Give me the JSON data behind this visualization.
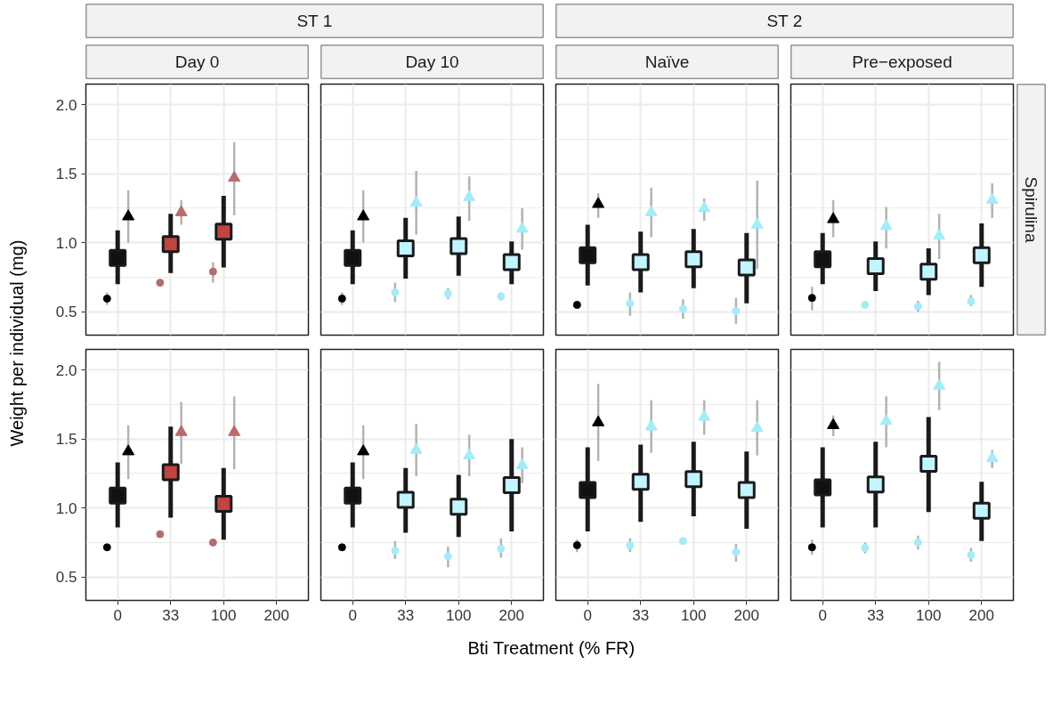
{
  "chart_data": [
    {
      "type": "scatter",
      "title": "Day 0",
      "ylabel": "Weight per individual (mg)",
      "annotations": [
        "ST 1"
      ],
      "categories": [
        "0",
        "33",
        "100",
        "200"
      ],
      "ylim": [
        0.33,
        2.15
      ],
      "yticks": [
        {
          "value": 0.5,
          "label": "0.5"
        },
        {
          "value": 1.0,
          "label": "1.0"
        },
        {
          "value": 1.5,
          "label": "1.5"
        },
        {
          "value": 2.0,
          "label": "2.0"
        }
      ],
      "grid": true,
      "tick_labels": "y",
      "series": [
        {
          "marker": "circle",
          "colors": [
            "#000000",
            "#b86b6b",
            "#b86b6b",
            "#b86b6b"
          ],
          "values": [
            0.595,
            0.71,
            0.79,
            null
          ],
          "errors": [
            [
              0.55,
              0.64
            ],
            null,
            [
              0.71,
              0.86
            ],
            null
          ]
        },
        {
          "marker": "square",
          "colors": [
            "#111111",
            "#c0443f",
            "#c0443f",
            "#c0443f"
          ],
          "values": [
            0.89,
            0.99,
            1.08,
            null
          ],
          "errors": [
            [
              0.7,
              1.09
            ],
            [
              0.78,
              1.21
            ],
            [
              0.82,
              1.34
            ],
            null
          ]
        },
        {
          "marker": "triangle",
          "colors": [
            "#000000",
            "#b86b6b",
            "#b86b6b",
            "#b86b6b"
          ],
          "values": [
            1.19,
            1.22,
            1.47,
            null
          ],
          "errors": [
            [
              1.0,
              1.38
            ],
            [
              1.13,
              1.31
            ],
            [
              1.2,
              1.73
            ],
            null
          ]
        }
      ]
    },
    {
      "type": "scatter",
      "title": "Day 10",
      "categories": [
        "0",
        "33",
        "100",
        "200"
      ],
      "ylim": [
        0.33,
        2.15
      ],
      "yticks": [
        0.5,
        1,
        1.5,
        2
      ],
      "grid": true,
      "tick_labels": false,
      "series": [
        {
          "marker": "circle",
          "colors": [
            "#000000",
            "#a3ecfa",
            "#a3ecfa",
            "#a3ecfa"
          ],
          "values": [
            0.595,
            0.64,
            0.63,
            0.61
          ],
          "errors": [
            [
              0.55,
              0.64
            ],
            [
              0.57,
              0.71
            ],
            [
              0.59,
              0.67
            ],
            [
              0.58,
              0.64
            ]
          ]
        },
        {
          "marker": "square",
          "colors": [
            "#111111",
            "#c2f5ff",
            "#c2f5ff",
            "#c2f5ff"
          ],
          "values": [
            0.89,
            0.96,
            0.975,
            0.86
          ],
          "errors": [
            [
              0.7,
              1.09
            ],
            [
              0.74,
              1.18
            ],
            [
              0.76,
              1.19
            ],
            [
              0.7,
              1.01
            ]
          ]
        },
        {
          "marker": "triangle",
          "colors": [
            "#000000",
            "#a3ecfa",
            "#a3ecfa",
            "#a3ecfa"
          ],
          "values": [
            1.19,
            1.29,
            1.33,
            1.1
          ],
          "errors": [
            [
              1.0,
              1.38
            ],
            [
              1.06,
              1.52
            ],
            [
              1.16,
              1.48
            ],
            [
              0.95,
              1.25
            ]
          ]
        }
      ]
    },
    {
      "type": "scatter",
      "title": "Naïve",
      "annotations": [
        "ST 2"
      ],
      "categories": [
        "0",
        "33",
        "100",
        "200"
      ],
      "ylim": [
        0.33,
        2.15
      ],
      "yticks": [
        0.5,
        1,
        1.5,
        2
      ],
      "grid": true,
      "tick_labels": false,
      "series": [
        {
          "marker": "circle",
          "colors": [
            "#000000",
            "#a3ecfa",
            "#a3ecfa",
            "#a3ecfa"
          ],
          "values": [
            0.55,
            0.56,
            0.52,
            0.505
          ],
          "errors": [
            null,
            [
              0.47,
              0.64
            ],
            [
              0.45,
              0.59
            ],
            [
              0.41,
              0.6
            ]
          ]
        },
        {
          "marker": "square",
          "colors": [
            "#111111",
            "#c2f5ff",
            "#c2f5ff",
            "#c2f5ff"
          ],
          "values": [
            0.91,
            0.86,
            0.88,
            0.82
          ],
          "errors": [
            [
              0.69,
              1.13
            ],
            [
              0.64,
              1.08
            ],
            [
              0.67,
              1.1
            ],
            [
              0.56,
              1.07
            ]
          ]
        },
        {
          "marker": "triangle",
          "colors": [
            "#000000",
            "#a3ecfa",
            "#a3ecfa",
            "#a3ecfa"
          ],
          "values": [
            1.28,
            1.22,
            1.25,
            1.13
          ],
          "errors": [
            [
              1.18,
              1.36
            ],
            [
              1.04,
              1.4
            ],
            [
              1.16,
              1.32
            ],
            [
              0.81,
              1.45
            ]
          ]
        }
      ]
    },
    {
      "type": "scatter",
      "title": "Pre−exposed",
      "annotations": [
        "Spirulina"
      ],
      "categories": [
        "0",
        "33",
        "100",
        "200"
      ],
      "ylim": [
        0.33,
        2.15
      ],
      "yticks": [
        0.5,
        1,
        1.5,
        2
      ],
      "grid": true,
      "tick_labels": false,
      "series": [
        {
          "marker": "circle",
          "colors": [
            "#000000",
            "#a3ecfa",
            "#a3ecfa",
            "#a3ecfa"
          ],
          "values": [
            0.6,
            0.55,
            0.54,
            0.575
          ],
          "errors": [
            [
              0.51,
              0.68
            ],
            null,
            [
              0.5,
              0.58
            ],
            [
              0.54,
              0.62
            ]
          ]
        },
        {
          "marker": "square",
          "colors": [
            "#111111",
            "#c2f5ff",
            "#c2f5ff",
            "#c2f5ff"
          ],
          "values": [
            0.88,
            0.83,
            0.79,
            0.91
          ],
          "errors": [
            [
              0.7,
              1.07
            ],
            [
              0.65,
              1.01
            ],
            [
              0.62,
              0.96
            ],
            [
              0.68,
              1.14
            ]
          ]
        },
        {
          "marker": "triangle",
          "colors": [
            "#000000",
            "#a3ecfa",
            "#a3ecfa",
            "#a3ecfa"
          ],
          "values": [
            1.17,
            1.12,
            1.05,
            1.31
          ],
          "errors": [
            [
              1.04,
              1.31
            ],
            [
              0.96,
              1.26
            ],
            [
              0.88,
              1.21
            ],
            [
              1.18,
              1.43
            ]
          ]
        }
      ]
    },
    {
      "type": "scatter",
      "categories": [
        "0",
        "33",
        "100",
        "200"
      ],
      "ylim": [
        0.33,
        2.15
      ],
      "yticks": [
        {
          "value": 0.5,
          "label": "0.5"
        },
        {
          "value": 1.0,
          "label": "1.0"
        },
        {
          "value": 1.5,
          "label": "1.5"
        },
        {
          "value": 2.0,
          "label": "2.0"
        }
      ],
      "grid": true,
      "series": [
        {
          "marker": "circle",
          "colors": [
            "#000000",
            "#b86b6b",
            "#b86b6b",
            "#b86b6b"
          ],
          "values": [
            0.715,
            0.81,
            0.75,
            null
          ],
          "errors": [
            null,
            null,
            null,
            null
          ]
        },
        {
          "marker": "square",
          "colors": [
            "#111111",
            "#c0443f",
            "#c0443f",
            "#c0443f"
          ],
          "values": [
            1.09,
            1.26,
            1.03,
            null
          ],
          "errors": [
            [
              0.86,
              1.33
            ],
            [
              0.93,
              1.59
            ],
            [
              0.77,
              1.29
            ],
            null
          ]
        },
        {
          "marker": "triangle",
          "colors": [
            "#000000",
            "#b86b6b",
            "#b86b6b",
            "#b86b6b"
          ],
          "values": [
            1.41,
            1.55,
            1.55,
            null
          ],
          "errors": [
            [
              1.21,
              1.6
            ],
            [
              1.32,
              1.77
            ],
            [
              1.28,
              1.81
            ],
            null
          ]
        }
      ]
    },
    {
      "type": "scatter",
      "xlabel": "Bti Treatment (% FR)",
      "categories": [
        "0",
        "33",
        "100",
        "200"
      ],
      "ylim": [
        0.33,
        2.15
      ],
      "yticks": [
        0.5,
        1,
        1.5,
        2
      ],
      "grid": true,
      "tick_labels": "x",
      "series": [
        {
          "marker": "circle",
          "colors": [
            "#000000",
            "#a3ecfa",
            "#a3ecfa",
            "#a3ecfa"
          ],
          "values": [
            0.715,
            0.69,
            0.65,
            0.705
          ],
          "errors": [
            null,
            [
              0.63,
              0.76
            ],
            [
              0.57,
              0.72
            ],
            [
              0.64,
              0.78
            ]
          ]
        },
        {
          "marker": "square",
          "colors": [
            "#111111",
            "#c2f5ff",
            "#c2f5ff",
            "#c2f5ff"
          ],
          "values": [
            1.09,
            1.06,
            1.01,
            1.165
          ],
          "errors": [
            [
              0.86,
              1.33
            ],
            [
              0.82,
              1.29
            ],
            [
              0.79,
              1.24
            ],
            [
              0.83,
              1.5
            ]
          ]
        },
        {
          "marker": "triangle",
          "colors": [
            "#000000",
            "#a3ecfa",
            "#a3ecfa",
            "#a3ecfa"
          ],
          "values": [
            1.41,
            1.42,
            1.38,
            1.31
          ],
          "errors": [
            [
              1.21,
              1.6
            ],
            [
              1.23,
              1.61
            ],
            [
              1.23,
              1.53
            ],
            [
              1.18,
              1.44
            ]
          ]
        }
      ]
    },
    {
      "type": "scatter",
      "categories": [
        "0",
        "33",
        "100",
        "200"
      ],
      "ylim": [
        0.33,
        2.15
      ],
      "yticks": [
        0.5,
        1,
        1.5,
        2
      ],
      "grid": true,
      "tick_labels": "x",
      "series": [
        {
          "marker": "circle",
          "colors": [
            "#000000",
            "#a3ecfa",
            "#a3ecfa",
            "#a3ecfa"
          ],
          "values": [
            0.73,
            0.73,
            0.76,
            0.68
          ],
          "errors": [
            [
              0.68,
              0.77
            ],
            [
              0.68,
              0.78
            ],
            null,
            [
              0.61,
              0.74
            ]
          ]
        },
        {
          "marker": "square",
          "colors": [
            "#111111",
            "#c2f5ff",
            "#c2f5ff",
            "#c2f5ff"
          ],
          "values": [
            1.13,
            1.19,
            1.21,
            1.13
          ],
          "errors": [
            [
              0.83,
              1.44
            ],
            [
              0.9,
              1.46
            ],
            [
              0.94,
              1.48
            ],
            [
              0.85,
              1.41
            ]
          ]
        },
        {
          "marker": "triangle",
          "colors": [
            "#000000",
            "#a3ecfa",
            "#a3ecfa",
            "#a3ecfa"
          ],
          "values": [
            1.62,
            1.59,
            1.66,
            1.58
          ],
          "errors": [
            [
              1.34,
              1.9
            ],
            [
              1.4,
              1.78
            ],
            [
              1.53,
              1.78
            ],
            [
              1.38,
              1.78
            ]
          ]
        }
      ]
    },
    {
      "type": "scatter",
      "categories": [
        "0",
        "33",
        "100",
        "200"
      ],
      "ylim": [
        0.33,
        2.15
      ],
      "yticks": [
        0.5,
        1,
        1.5,
        2
      ],
      "grid": true,
      "tick_labels": "x",
      "series": [
        {
          "marker": "circle",
          "colors": [
            "#000000",
            "#a3ecfa",
            "#a3ecfa",
            "#a3ecfa"
          ],
          "values": [
            0.715,
            0.71,
            0.75,
            0.66
          ],
          "errors": [
            [
              0.66,
              0.77
            ],
            [
              0.67,
              0.75
            ],
            [
              0.7,
              0.8
            ],
            [
              0.61,
              0.71
            ]
          ]
        },
        {
          "marker": "square",
          "colors": [
            "#111111",
            "#c2f5ff",
            "#c2f5ff",
            "#c2f5ff"
          ],
          "values": [
            1.15,
            1.17,
            1.32,
            0.98
          ],
          "errors": [
            [
              0.86,
              1.44
            ],
            [
              0.86,
              1.48
            ],
            [
              0.97,
              1.66
            ],
            [
              0.76,
              1.19
            ]
          ]
        },
        {
          "marker": "triangle",
          "colors": [
            "#000000",
            "#a3ecfa",
            "#a3ecfa",
            "#a3ecfa"
          ],
          "values": [
            1.6,
            1.63,
            1.885,
            1.36
          ],
          "errors": [
            [
              1.52,
              1.67
            ],
            [
              1.44,
              1.81
            ],
            [
              1.71,
              2.06
            ],
            [
              1.29,
              1.42
            ]
          ]
        }
      ]
    }
  ]
}
